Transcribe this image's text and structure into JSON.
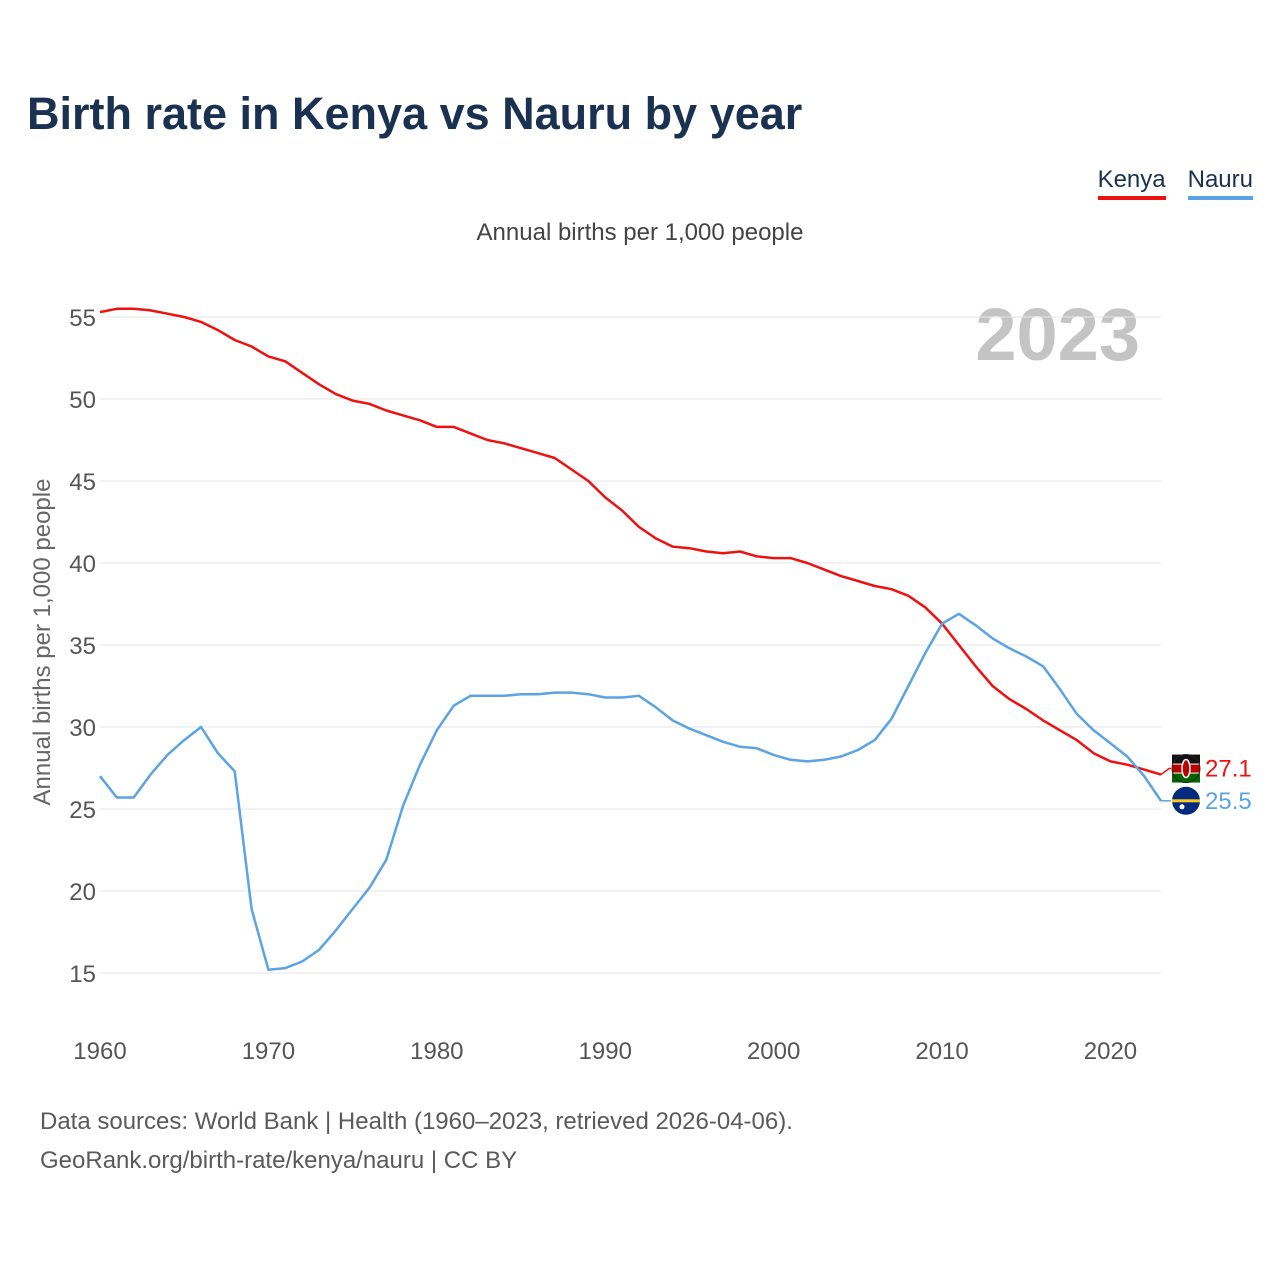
{
  "title": "Birth rate in Kenya vs Nauru by year",
  "legend": [
    {
      "label": "Kenya",
      "color": "#ee1111"
    },
    {
      "label": "Nauru",
      "color": "#5ba3e2"
    }
  ],
  "footer": {
    "sources": "Data sources: World Bank | Health (1960–2023, retrieved 2026-04-06).",
    "link": "GeoRank.org/birth-rate/kenya/nauru | CC BY"
  },
  "chart_data": {
    "type": "line",
    "title": "Birth rate in Kenya vs Nauru by year",
    "subtitle": "Annual births per 1,000 people",
    "ylabel": "Annual births per 1,000 people",
    "xlabel": "",
    "year_label": "2023",
    "xlim": [
      1960,
      2023
    ],
    "ylim": [
      12,
      57
    ],
    "x_ticks": [
      1960,
      1970,
      1980,
      1990,
      2000,
      2010,
      2020
    ],
    "y_ticks": [
      15,
      20,
      25,
      30,
      35,
      40,
      45,
      50,
      55
    ],
    "grid": true,
    "x": [
      1960,
      1961,
      1962,
      1963,
      1964,
      1965,
      1966,
      1967,
      1968,
      1969,
      1970,
      1971,
      1972,
      1973,
      1974,
      1975,
      1976,
      1977,
      1978,
      1979,
      1980,
      1981,
      1982,
      1983,
      1984,
      1985,
      1986,
      1987,
      1988,
      1989,
      1990,
      1991,
      1992,
      1993,
      1994,
      1995,
      1996,
      1997,
      1998,
      1999,
      2000,
      2001,
      2002,
      2003,
      2004,
      2005,
      2006,
      2007,
      2008,
      2009,
      2010,
      2011,
      2012,
      2013,
      2014,
      2015,
      2016,
      2017,
      2018,
      2019,
      2020,
      2021,
      2022,
      2023
    ],
    "series": [
      {
        "name": "Kenya",
        "color": "#ee1111",
        "end_label": "27.1",
        "values": [
          55.3,
          55.5,
          55.5,
          55.4,
          55.2,
          55.0,
          54.7,
          54.2,
          53.6,
          53.2,
          52.6,
          52.3,
          51.6,
          50.9,
          50.3,
          49.9,
          49.7,
          49.3,
          49.0,
          48.7,
          48.3,
          48.3,
          47.9,
          47.5,
          47.3,
          47.0,
          46.7,
          46.4,
          45.7,
          45.0,
          44.0,
          43.2,
          42.2,
          41.5,
          41.0,
          40.9,
          40.7,
          40.6,
          40.7,
          40.4,
          40.3,
          40.3,
          40.0,
          39.6,
          39.2,
          38.9,
          38.6,
          38.4,
          38.0,
          37.3,
          36.3,
          35.0,
          33.7,
          32.5,
          31.7,
          31.1,
          30.4,
          29.8,
          29.2,
          28.4,
          27.9,
          27.7,
          27.4,
          27.1
        ]
      },
      {
        "name": "Nauru",
        "color": "#5ba3e2",
        "end_label": "25.5",
        "values": [
          27.0,
          25.7,
          25.7,
          27.1,
          28.3,
          29.2,
          30.0,
          28.4,
          27.3,
          18.9,
          15.2,
          15.3,
          15.7,
          16.4,
          17.6,
          18.9,
          20.2,
          21.9,
          25.2,
          27.7,
          29.8,
          31.3,
          31.9,
          31.9,
          31.9,
          32.0,
          32.0,
          32.1,
          32.1,
          32.0,
          31.8,
          31.8,
          31.9,
          31.2,
          30.4,
          29.9,
          29.5,
          29.1,
          28.8,
          28.7,
          28.3,
          28.0,
          27.9,
          28.0,
          28.2,
          28.6,
          29.2,
          30.5,
          32.5,
          34.5,
          36.3,
          36.9,
          36.2,
          35.4,
          34.8,
          34.3,
          33.7,
          32.3,
          30.8,
          29.8,
          29.0,
          28.2,
          27.0,
          25.5
        ]
      }
    ]
  }
}
